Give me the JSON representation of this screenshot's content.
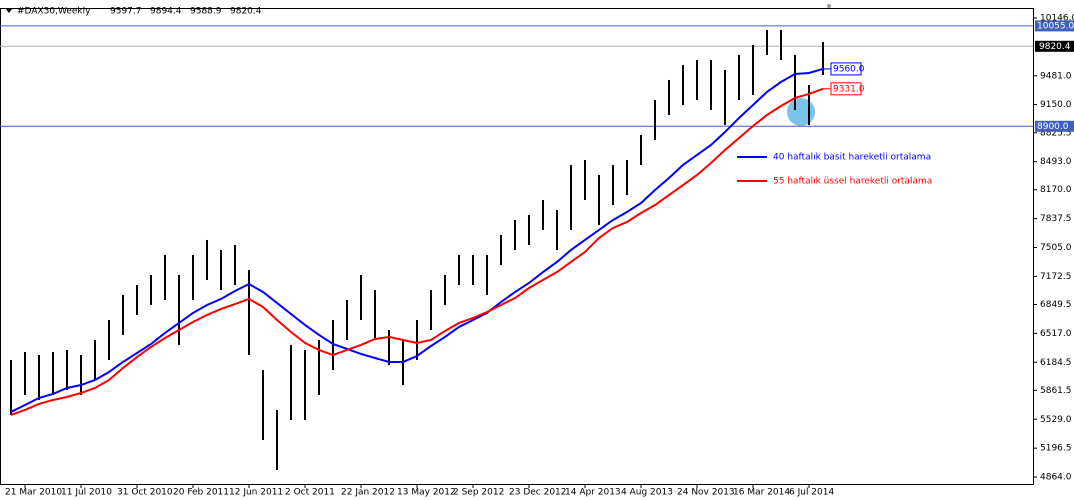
{
  "chart_data": {
    "type": "ohlc",
    "title": "#DAX30,Weekly",
    "quote": [
      9597.7,
      9894.4,
      9588.9,
      9820.4
    ],
    "categories": [
      null,
      "21 Mar 2010",
      null,
      null,
      null,
      "11 Jul 2010",
      null,
      null,
      null,
      "31 Oct 2010",
      null,
      null,
      null,
      "20 Feb 2011",
      null,
      null,
      null,
      "12 Jun 2011",
      null,
      null,
      null,
      "2 Oct 2011",
      null,
      null,
      null,
      "22 Jan 2012",
      null,
      null,
      null,
      "13 May 2012",
      null,
      null,
      null,
      "2 Sep 2012",
      null,
      null,
      null,
      "23 Dec 2012",
      null,
      null,
      null,
      "14 Apr 2013",
      null,
      null,
      null,
      "4 Aug 2013",
      null,
      null,
      null,
      "24 Nov 2013",
      null,
      null,
      null,
      "16 Mar 2014",
      null,
      null,
      null,
      "6 Jul 2014",
      null
    ],
    "high": [
      6211,
      6303,
      6268,
      6303,
      6326,
      6268,
      6441,
      6671,
      6959,
      7074,
      7189,
      7419,
      7189,
      7419,
      7592,
      7477,
      7534,
      7246,
      6096,
      5636,
      6384,
      6326,
      6441,
      6671,
      6901,
      7189,
      7016,
      6556,
      6441,
      6671,
      7016,
      7189,
      7419,
      7419,
      7419,
      7649,
      7822,
      7879,
      8052,
      7937,
      8454,
      8512,
      8340,
      8454,
      8512,
      8800,
      9202,
      9433,
      9605,
      9663,
      9663,
      9548,
      9720,
      9835,
      10008,
      10008,
      9720,
      9375,
      9870
    ],
    "low": [
      5578,
      5808,
      5751,
      5808,
      5866,
      5808,
      5981,
      6211,
      6499,
      6729,
      6844,
      6901,
      6384,
      6901,
      7131,
      7016,
      7074,
      6268,
      5290,
      4945,
      5520,
      5520,
      5808,
      6096,
      6441,
      6671,
      6441,
      6153,
      5923,
      6211,
      6556,
      6844,
      7074,
      7074,
      6959,
      7304,
      7477,
      7534,
      7707,
      7477,
      7707,
      8052,
      7764,
      7994,
      8109,
      8454,
      8742,
      9030,
      9145,
      9202,
      9088,
      8915,
      9202,
      9260,
      9720,
      9663,
      9088,
      8915,
      9490
    ],
    "bar_color": "#000000",
    "series": [
      {
        "name": "40 haftalık basit hareketli ortalama",
        "color": "#0000ff",
        "end_label": "9560.0",
        "values": [
          5613,
          5693,
          5774,
          5820,
          5889,
          5923,
          5981,
          6073,
          6188,
          6291,
          6395,
          6522,
          6637,
          6752,
          6844,
          6913,
          7005,
          7085,
          6993,
          6867,
          6740,
          6614,
          6499,
          6395,
          6338,
          6280,
          6234,
          6188,
          6188,
          6257,
          6372,
          6476,
          6591,
          6671,
          6752,
          6878,
          6993,
          7097,
          7223,
          7339,
          7477,
          7592,
          7707,
          7822,
          7914,
          8017,
          8167,
          8305,
          8455,
          8570,
          8685,
          8834,
          8995,
          9145,
          9295,
          9410,
          9502,
          9513,
          9560
        ]
      },
      {
        "name": "55 haftalık üssel hareketli ortalama",
        "color": "#ff0000",
        "end_label": "9331.0",
        "values": [
          5578,
          5636,
          5705,
          5751,
          5785,
          5831,
          5889,
          5981,
          6119,
          6245,
          6361,
          6464,
          6556,
          6648,
          6729,
          6798,
          6855,
          6913,
          6821,
          6671,
          6533,
          6407,
          6326,
          6268,
          6326,
          6384,
          6453,
          6476,
          6441,
          6407,
          6441,
          6545,
          6637,
          6694,
          6763,
          6844,
          6924,
          7039,
          7131,
          7223,
          7339,
          7454,
          7615,
          7730,
          7799,
          7902,
          7994,
          8109,
          8224,
          8340,
          8478,
          8627,
          8765,
          8903,
          9030,
          9133,
          9226,
          9272,
          9331
        ]
      }
    ],
    "hlines": [
      {
        "value": 10055,
        "label": "10055.0",
        "color": "#4060c0"
      },
      {
        "value": 8900,
        "label": "8900.0",
        "color": "#4060c0"
      }
    ],
    "last_price": {
      "value": 9820.4,
      "label": "9820.4"
    },
    "ylim": [
      4784,
      10261
    ],
    "yticks": [
      {
        "value": 10146,
        "label": "10146.0"
      },
      {
        "value": 9481,
        "label": "9481.0"
      },
      {
        "value": 9150,
        "label": "9150.0"
      },
      {
        "value": 8825.5,
        "label": "8825.5"
      },
      {
        "value": 8493,
        "label": "8493.0"
      },
      {
        "value": 8170,
        "label": "8170.0"
      },
      {
        "value": 7837.5,
        "label": "7837.5"
      },
      {
        "value": 7505,
        "label": "7505.0"
      },
      {
        "value": 7172.5,
        "label": "7172.5"
      },
      {
        "value": 6849.5,
        "label": "6849.5"
      },
      {
        "value": 6517,
        "label": "6517.0"
      },
      {
        "value": 6184.5,
        "label": "6184.5"
      },
      {
        "value": 5861.5,
        "label": "5861.5"
      },
      {
        "value": 5529,
        "label": "5529.0"
      },
      {
        "value": 5196.5,
        "label": "5196.5"
      },
      {
        "value": 4864,
        "label": "4864.0"
      }
    ]
  }
}
